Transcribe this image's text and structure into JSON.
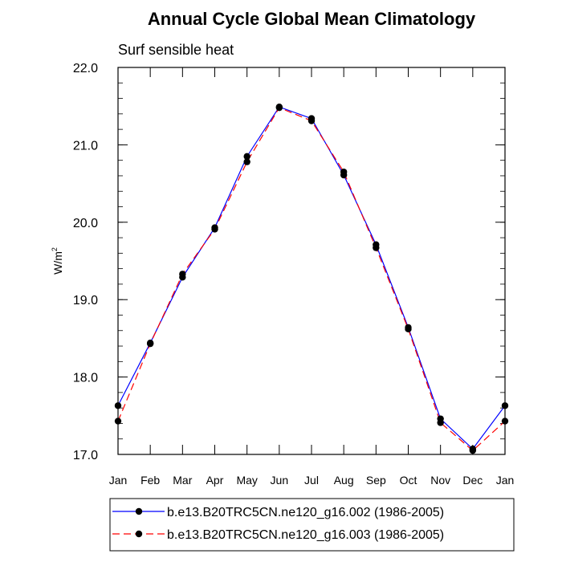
{
  "chart_data": {
    "type": "line",
    "title": "Annual Cycle Global Mean Climatology",
    "subtitle": "Surf sensible heat",
    "ylabel": "W/m",
    "ylabel_sup": "2",
    "xlabel": "",
    "categories": [
      "Jan",
      "Feb",
      "Mar",
      "Apr",
      "May",
      "Jun",
      "Jul",
      "Aug",
      "Sep",
      "Oct",
      "Nov",
      "Dec",
      "Jan"
    ],
    "ylim": [
      17.0,
      22.0
    ],
    "yticks": [
      17.0,
      18.0,
      19.0,
      20.0,
      21.0,
      22.0
    ],
    "ytick_labels": [
      "17.0",
      "18.0",
      "19.0",
      "20.0",
      "21.0",
      "22.0"
    ],
    "grid": false,
    "legend_position": "bottom",
    "series": [
      {
        "name": "b.e13.B20TRC5CN.ne120_g16.002 (1986-2005)",
        "color": "#0000ff",
        "dash": "solid",
        "values": [
          17.63,
          18.44,
          19.29,
          19.93,
          20.85,
          21.49,
          21.34,
          20.61,
          19.71,
          18.64,
          17.46,
          17.07,
          17.63
        ]
      },
      {
        "name": "b.e13.B20TRC5CN.ne120_g16.003 (1986-2005)",
        "color": "#ff0000",
        "dash": "dashed",
        "values": [
          17.43,
          18.43,
          19.33,
          19.91,
          20.78,
          21.48,
          21.31,
          20.65,
          19.67,
          18.62,
          17.41,
          17.05,
          17.43
        ]
      }
    ]
  }
}
